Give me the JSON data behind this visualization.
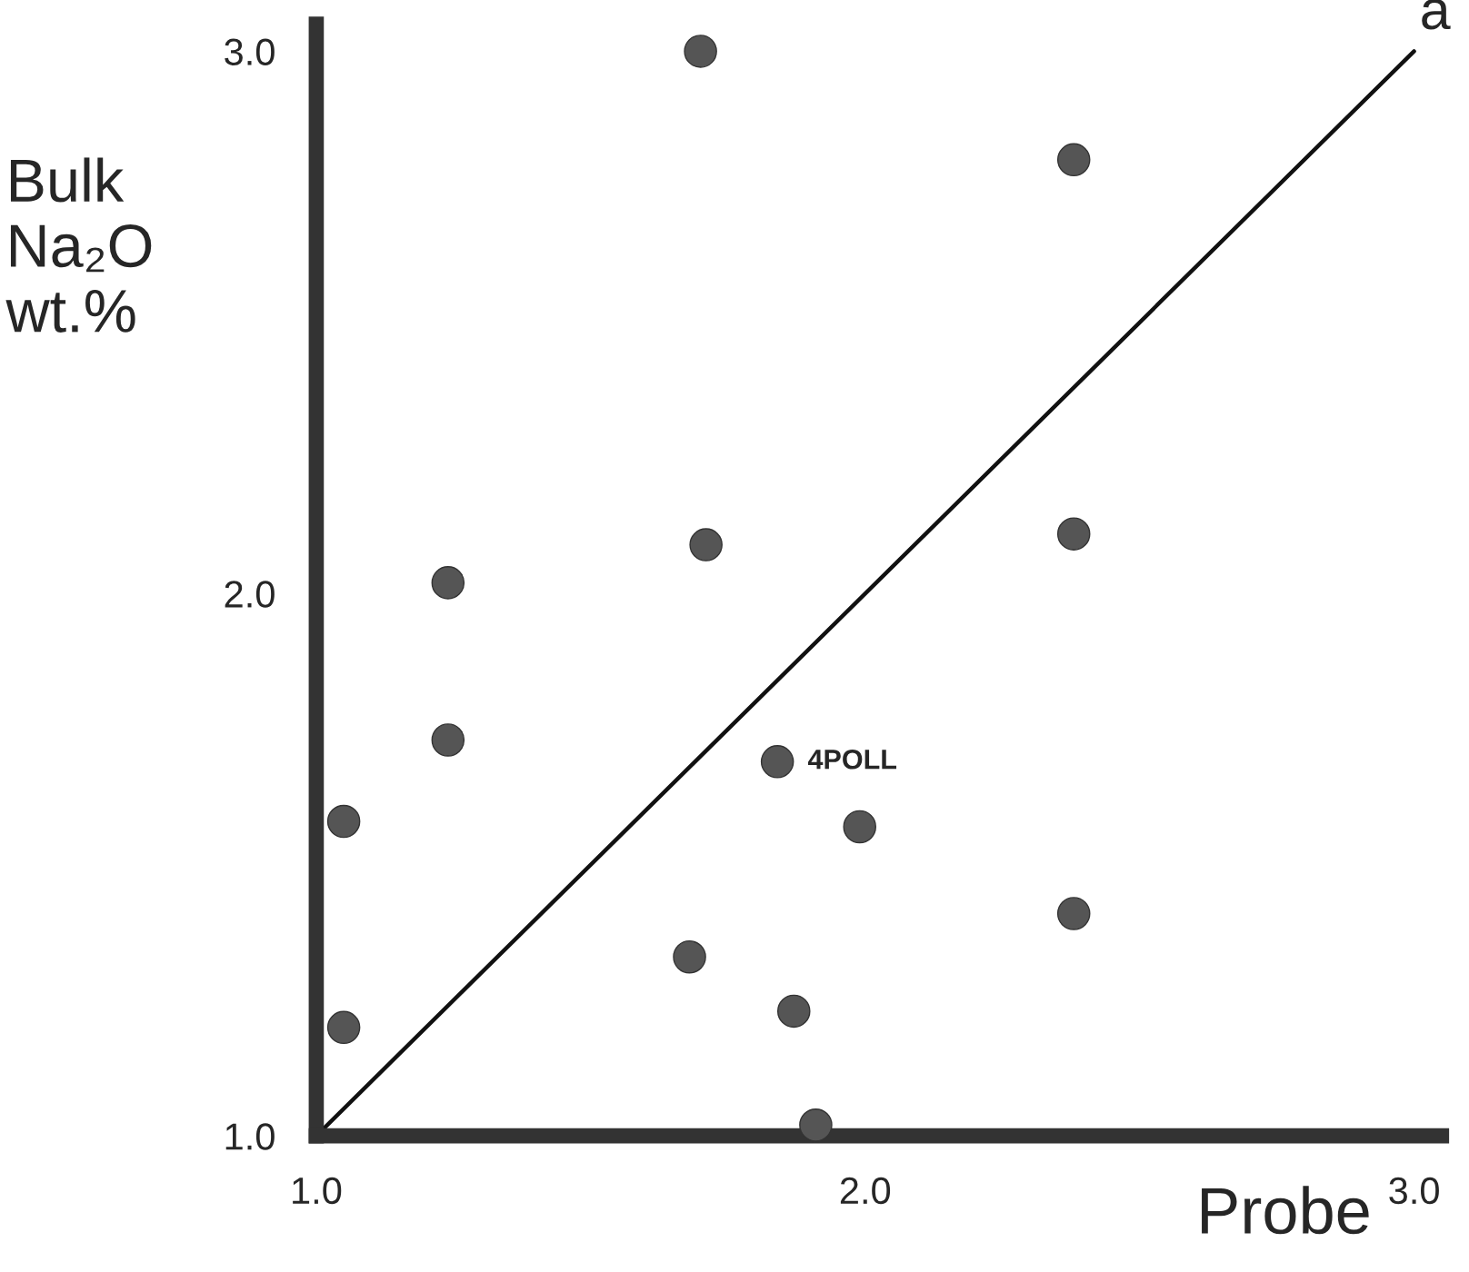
{
  "chart_data": {
    "type": "scatter",
    "xlabel": "Probe",
    "ylabel": "Bulk\nNa₂O\nwt.%",
    "xlim": [
      1.0,
      3.05
    ],
    "ylim": [
      1.0,
      3.05
    ],
    "xticks": [
      {
        "value": 1,
        "label": "1.0"
      },
      {
        "value": 2,
        "label": "2.0"
      },
      {
        "value": 3,
        "label": "3.0"
      }
    ],
    "yticks": [
      {
        "value": 1,
        "label": "1.0"
      },
      {
        "value": 2,
        "label": "2.0"
      },
      {
        "value": 3,
        "label": "3.0"
      }
    ],
    "grid": false,
    "series": [
      {
        "marker": "circle",
        "color": "#555555",
        "x": [
          1.7,
          2.38,
          1.71,
          2.38,
          1.24,
          1.24,
          1.84,
          1.99,
          1.05,
          2.38,
          1.68,
          1.87,
          1.05,
          1.91
        ],
        "values": [
          3.0,
          2.8,
          2.09,
          2.11,
          2.02,
          1.73,
          1.69,
          1.57,
          1.58,
          1.41,
          1.33,
          1.23,
          1.2,
          1.02
        ]
      },
      {
        "type": "line",
        "name": "a",
        "color": "#111111",
        "x": [
          1,
          3
        ],
        "values": [
          1,
          3
        ]
      }
    ],
    "annotations": [
      {
        "text": "4POLL",
        "x": 1.84,
        "y": 1.69
      }
    ]
  }
}
